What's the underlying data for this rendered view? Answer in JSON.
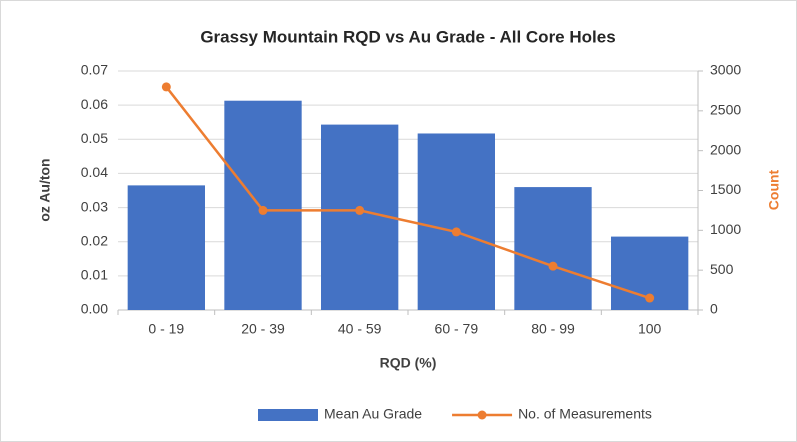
{
  "chart_data": {
    "type": "bar_line",
    "title": "Grassy Mountain RQD vs Au Grade - All Core Holes",
    "x_label": "RQD (%)",
    "y_label": "oz Au/ton",
    "y2_label": "Count",
    "categories": [
      "0 - 19",
      "20 - 39",
      "40 - 59",
      "60 - 79",
      "80 - 99",
      "100"
    ],
    "series": [
      {
        "name": "Mean Au Grade",
        "type": "bar",
        "color": "#4472c4",
        "values": [
          0.0365,
          0.0613,
          0.0543,
          0.0517,
          0.036,
          0.0215
        ]
      },
      {
        "name": "No. of Measurements",
        "type": "line",
        "axis": "y2",
        "color": "#ed7d31",
        "values": [
          2800,
          1250,
          1250,
          980,
          550,
          150
        ]
      }
    ],
    "ylim": [
      0,
      0.07
    ],
    "yticks": [
      {
        "value": 0,
        "label": "0.00"
      },
      {
        "value": 0.01,
        "label": "0.01"
      },
      {
        "value": 0.02,
        "label": "0.02"
      },
      {
        "value": 0.03,
        "label": "0.03"
      },
      {
        "value": 0.04,
        "label": "0.04"
      },
      {
        "value": 0.05,
        "label": "0.05"
      },
      {
        "value": 0.06,
        "label": "0.06"
      },
      {
        "value": 0.07,
        "label": "0.07"
      }
    ],
    "y2lim": [
      0,
      3000
    ],
    "y2ticks": [
      0,
      500,
      1000,
      1500,
      2000,
      2500,
      3000
    ],
    "grid": true,
    "legend": "bottom"
  }
}
